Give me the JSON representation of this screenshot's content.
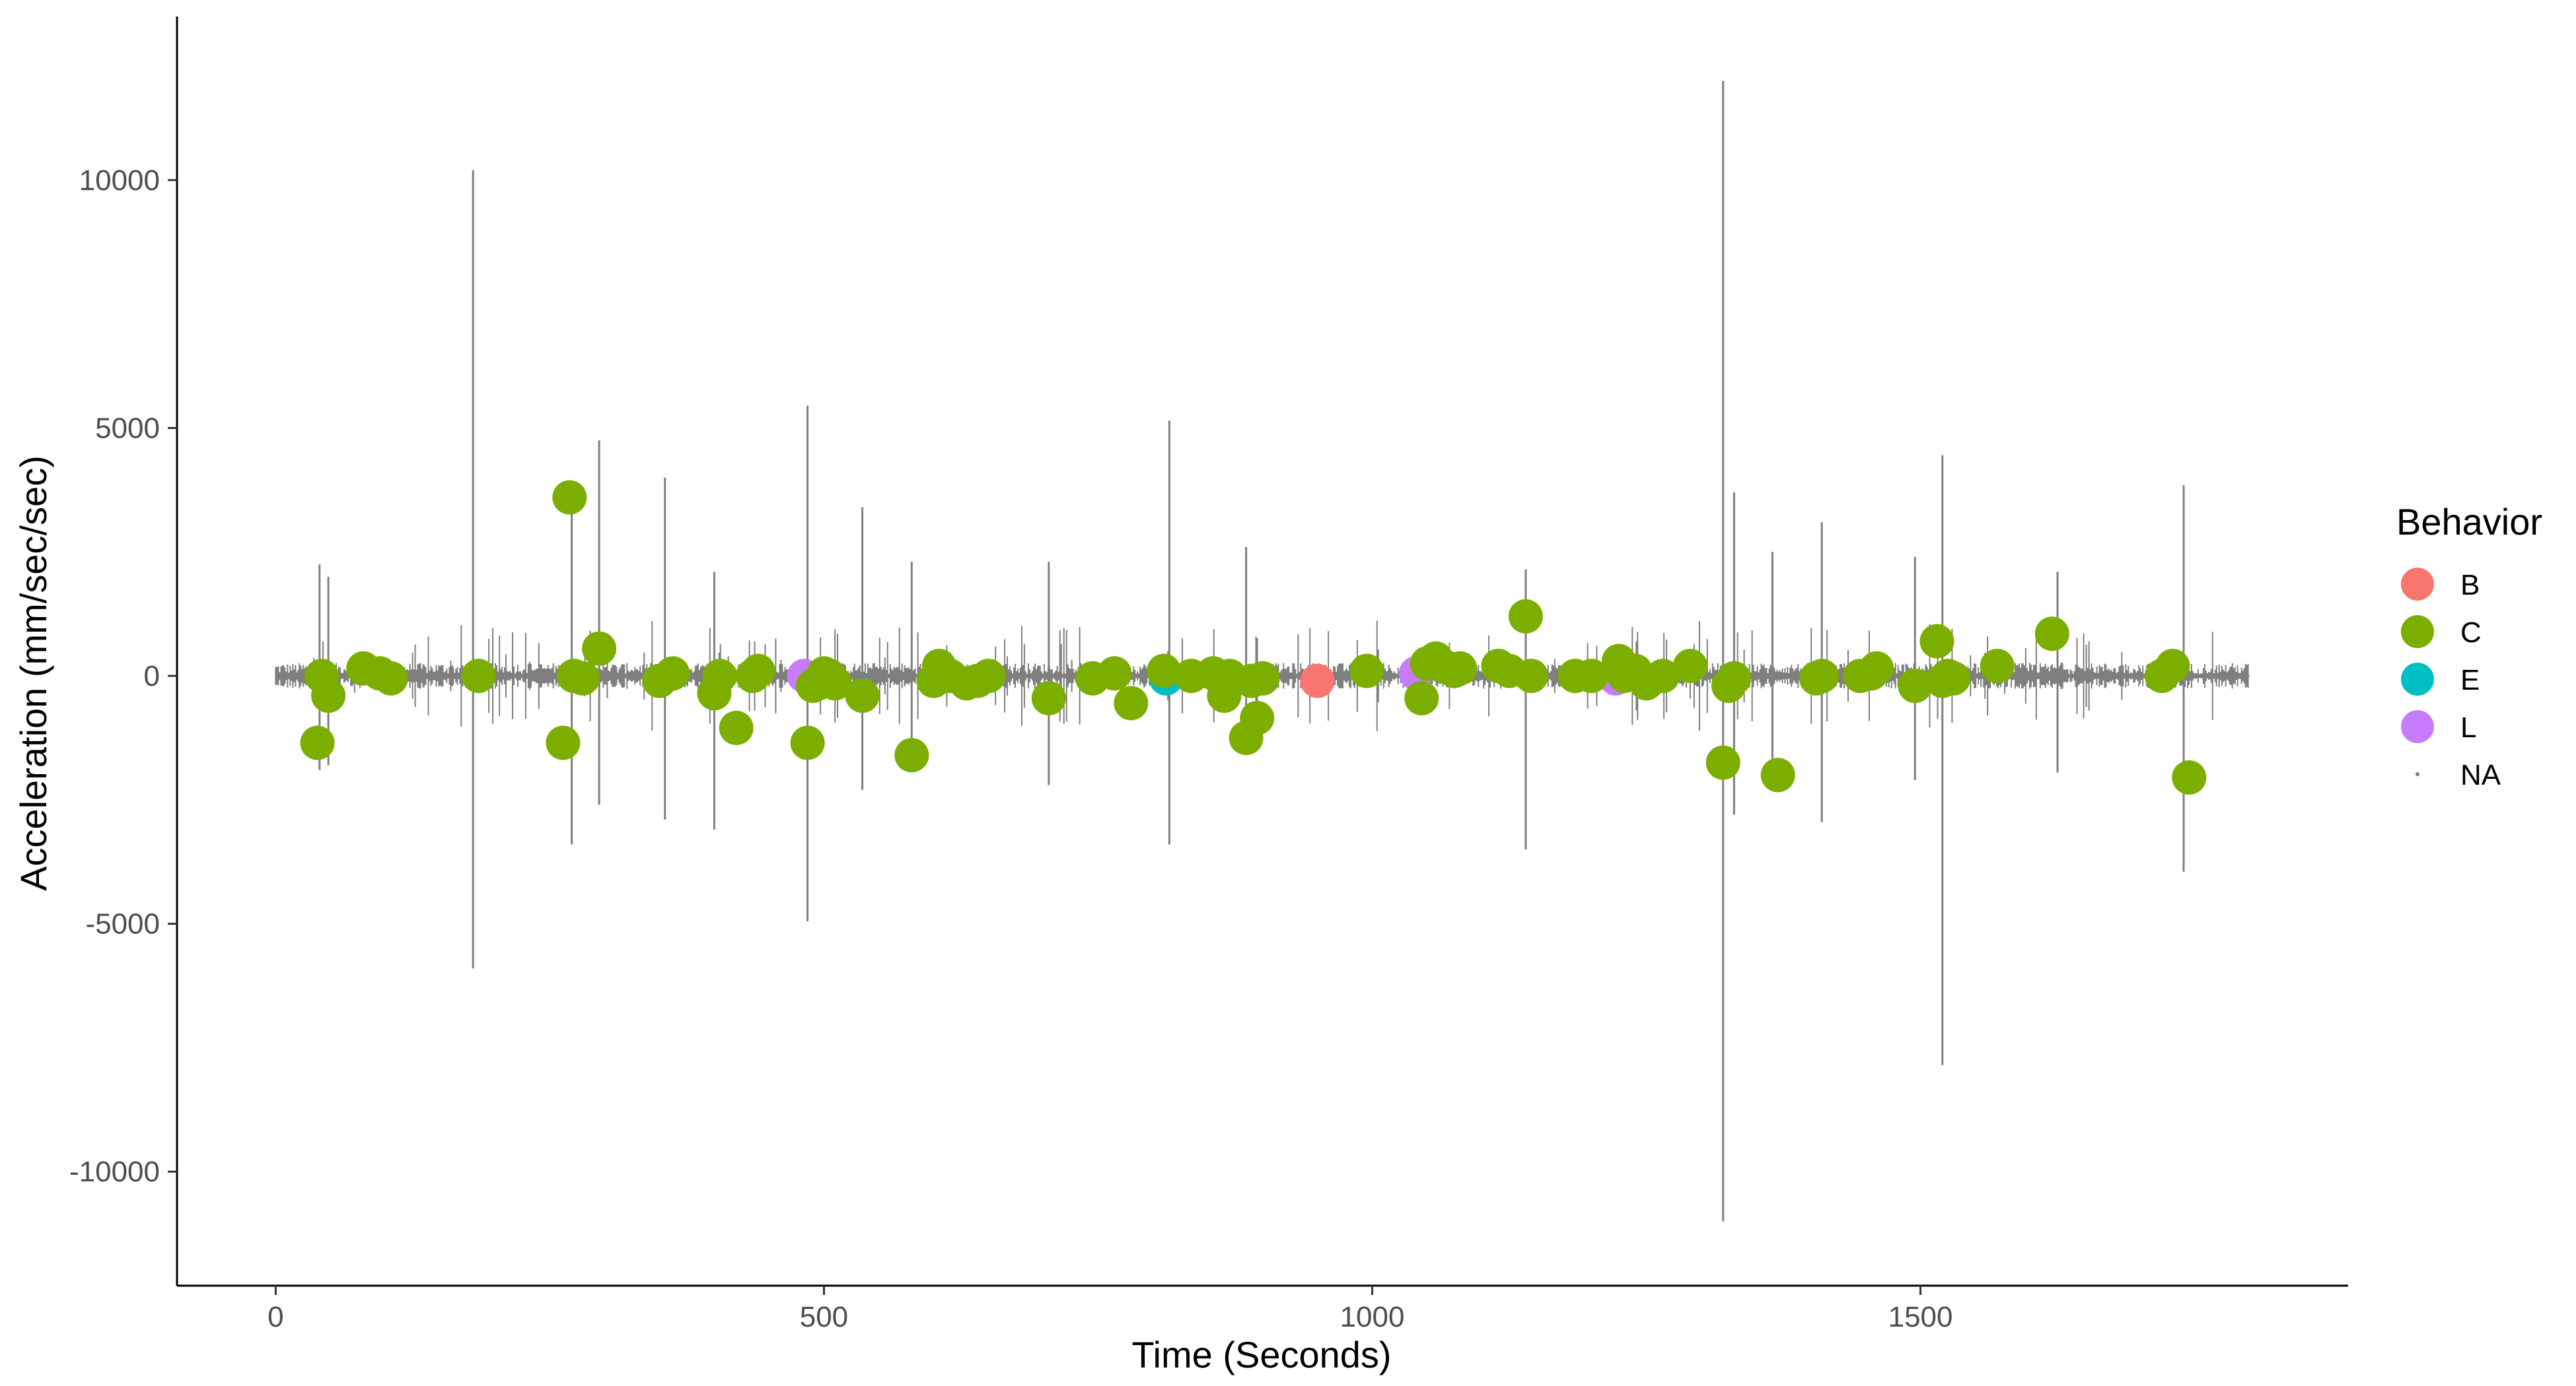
{
  "chart_data": {
    "type": "scatter",
    "title": "",
    "xlabel": "Time (Seconds)",
    "ylabel": "Acceleration (mm/sec/sec)",
    "xlim": [
      -90,
      1890
    ],
    "ylim": [
      -12300,
      13300
    ],
    "x_ticks": [
      {
        "value": 0,
        "label": "0"
      },
      {
        "value": 500,
        "label": "500"
      },
      {
        "value": 1000,
        "label": "1000"
      },
      {
        "value": 1500,
        "label": "1500"
      }
    ],
    "y_ticks": [
      {
        "value": 10000,
        "label": "10000"
      },
      {
        "value": 5000,
        "label": "5000"
      },
      {
        "value": 0,
        "label": "0"
      },
      {
        "value": -5000,
        "label": "-5000"
      },
      {
        "value": -10000,
        "label": "-10000"
      }
    ],
    "grid": false,
    "legend": {
      "title": "Behavior",
      "placement": "right",
      "items": [
        {
          "label": "B",
          "color": "#F8766D"
        },
        {
          "label": "C",
          "color": "#7CAE00"
        },
        {
          "label": "E",
          "color": "#00BFC4"
        },
        {
          "label": "L",
          "color": "#C77CFF"
        },
        {
          "label": "NA",
          "color": "#7f7f7f",
          "style": "small-point"
        }
      ]
    },
    "trace": {
      "name": "NA",
      "color": "#7f7f7f",
      "x_range": [
        0,
        1800
      ],
      "baseline": 0,
      "spikes": [
        {
          "x": 180,
          "min": -5900,
          "max": 10200
        },
        {
          "x": 270,
          "min": -3400,
          "max": 3600
        },
        {
          "x": 295,
          "min": -2600,
          "max": 4750
        },
        {
          "x": 355,
          "min": -2900,
          "max": 4000
        },
        {
          "x": 400,
          "min": -3100,
          "max": 2100
        },
        {
          "x": 485,
          "min": -4950,
          "max": 5450
        },
        {
          "x": 535,
          "min": -2300,
          "max": 3400
        },
        {
          "x": 580,
          "min": -1800,
          "max": 2300
        },
        {
          "x": 705,
          "min": -2200,
          "max": 2300
        },
        {
          "x": 815,
          "min": -3400,
          "max": 5150
        },
        {
          "x": 885,
          "min": -1600,
          "max": 2600
        },
        {
          "x": 1140,
          "min": -3500,
          "max": 2150
        },
        {
          "x": 1320,
          "min": -11000,
          "max": 12000
        },
        {
          "x": 1330,
          "min": -2800,
          "max": 3700
        },
        {
          "x": 1365,
          "min": -2300,
          "max": 2500
        },
        {
          "x": 1410,
          "min": -2950,
          "max": 3100
        },
        {
          "x": 1495,
          "min": -2100,
          "max": 2400
        },
        {
          "x": 1520,
          "min": -7850,
          "max": 4450
        },
        {
          "x": 1625,
          "min": -1950,
          "max": 2100
        },
        {
          "x": 1740,
          "min": -3950,
          "max": 3850
        },
        {
          "x": 40,
          "min": -1900,
          "max": 2250
        },
        {
          "x": 48,
          "min": -1800,
          "max": 2000
        }
      ]
    },
    "series": [
      {
        "name": "B",
        "color": "#F8766D",
        "x": [
          950
        ],
        "y": [
          -100
        ]
      },
      {
        "name": "C",
        "color": "#7CAE00",
        "x": [
          38,
          42,
          48,
          80,
          95,
          105,
          185,
          262,
          268,
          272,
          280,
          295,
          350,
          362,
          400,
          405,
          420,
          435,
          440,
          485,
          490,
          495,
          500,
          505,
          510,
          535,
          580,
          600,
          605,
          615,
          630,
          640,
          650,
          705,
          745,
          765,
          780,
          810,
          835,
          855,
          865,
          870,
          885,
          890,
          895,
          900,
          995,
          1045,
          1050,
          1058,
          1065,
          1075,
          1080,
          1115,
          1125,
          1140,
          1145,
          1185,
          1200,
          1225,
          1230,
          1240,
          1250,
          1265,
          1290,
          1320,
          1325,
          1330,
          1370,
          1405,
          1410,
          1445,
          1455,
          1460,
          1495,
          1515,
          1520,
          1525,
          1530,
          1570,
          1620,
          1720,
          1730,
          1745
        ],
        "y": [
          -1350,
          0,
          -400,
          150,
          50,
          -50,
          0,
          -1350,
          3600,
          0,
          -50,
          550,
          -100,
          50,
          -350,
          0,
          -1050,
          0,
          100,
          -1350,
          -200,
          -150,
          50,
          0,
          -150,
          -400,
          -1600,
          -100,
          200,
          0,
          -150,
          -100,
          0,
          -450,
          -50,
          50,
          -550,
          100,
          0,
          50,
          -400,
          0,
          -1250,
          -100,
          -850,
          -50,
          100,
          -450,
          250,
          350,
          200,
          100,
          150,
          200,
          100,
          1200,
          0,
          0,
          0,
          300,
          0,
          100,
          -150,
          0,
          200,
          -1750,
          -200,
          -50,
          -2000,
          -50,
          0,
          0,
          50,
          150,
          -200,
          700,
          -100,
          0,
          -50,
          200,
          850,
          0,
          200,
          -2050
        ]
      },
      {
        "name": "E",
        "color": "#00BFC4",
        "x": [
          812
        ],
        "y": [
          -50
        ]
      },
      {
        "name": "L",
        "color": "#C77CFF",
        "x": [
          482,
          1040,
          1222
        ],
        "y": [
          0,
          50,
          -50
        ]
      }
    ]
  }
}
